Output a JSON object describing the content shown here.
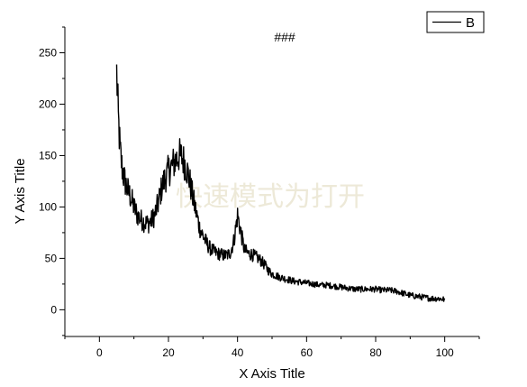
{
  "chart_data": {
    "type": "line",
    "title": "###",
    "xlabel": "X Axis Title",
    "ylabel": "Y Axis Title",
    "xlim": [
      -10,
      110
    ],
    "ylim": [
      -26,
      275
    ],
    "x_ticks": [
      0,
      20,
      40,
      60,
      80,
      100
    ],
    "y_ticks": [
      0,
      50,
      100,
      150,
      200,
      250
    ],
    "grid": false,
    "legend_position": "top-right",
    "watermark": "快速模式为打开",
    "series": [
      {
        "name": "B",
        "color": "#000000",
        "x": [
          5,
          5.5,
          6,
          6.5,
          7,
          8,
          9,
          10,
          11,
          12,
          13,
          14,
          15,
          16,
          17,
          18,
          19,
          20,
          21,
          22,
          23,
          24,
          25,
          26,
          27,
          28,
          29,
          30,
          31,
          32,
          33,
          34,
          35,
          36,
          37,
          38,
          39,
          40,
          41,
          42,
          43,
          44,
          45,
          46,
          47,
          48,
          49,
          50,
          52,
          54,
          56,
          58,
          60,
          62,
          64,
          66,
          68,
          70,
          72,
          74,
          76,
          78,
          80,
          82,
          84,
          86,
          88,
          90,
          92,
          94,
          96,
          98,
          100
        ],
        "y": [
          230,
          185,
          155,
          140,
          130,
          118,
          110,
          100,
          92,
          88,
          85,
          84,
          86,
          92,
          103,
          118,
          128,
          135,
          140,
          145,
          150,
          148,
          140,
          128,
          110,
          95,
          80,
          72,
          65,
          60,
          57,
          55,
          54,
          53,
          53,
          56,
          68,
          92,
          75,
          58,
          55,
          54,
          52,
          50,
          47,
          43,
          38,
          35,
          32,
          30,
          28,
          27,
          26,
          25,
          24,
          24,
          23,
          22,
          21,
          20,
          20,
          20,
          20,
          19,
          19,
          18,
          16,
          14,
          13,
          12,
          11,
          11,
          10
        ]
      }
    ]
  }
}
